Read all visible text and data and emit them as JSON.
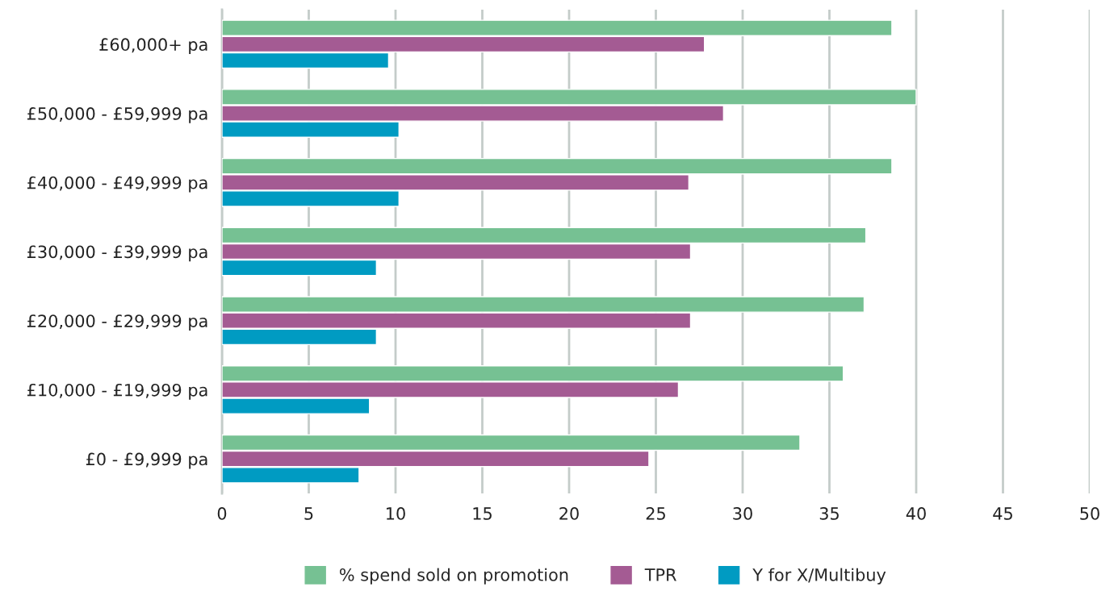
{
  "chart_data": {
    "type": "bar",
    "orientation": "horizontal",
    "categories": [
      "£60,000+ pa",
      "£50,000 - £59,999 pa",
      "£40,000 - £49,999 pa",
      "£30,000 - £39,999 pa",
      "£20,000 - £29,999 pa",
      "£10,000 - £19,999 pa",
      "£0 - £9,999 pa"
    ],
    "series": [
      {
        "name": "% spend sold on promotion",
        "color": "#76c193",
        "values": [
          38.6,
          40.0,
          38.6,
          37.1,
          37.0,
          35.8,
          33.3
        ]
      },
      {
        "name": "TPR",
        "color": "#a45b93",
        "values": [
          27.8,
          28.9,
          26.9,
          27.0,
          27.0,
          26.3,
          24.6
        ]
      },
      {
        "name": "Y for X/Multibuy",
        "color": "#009bc2",
        "values": [
          9.6,
          10.2,
          10.2,
          8.9,
          8.9,
          8.5,
          7.9
        ]
      }
    ],
    "xlim": [
      0,
      50
    ],
    "xticks": [
      0,
      5,
      10,
      15,
      20,
      25,
      30,
      35,
      40,
      45,
      50
    ],
    "grid": "x",
    "legend": "bottom"
  }
}
